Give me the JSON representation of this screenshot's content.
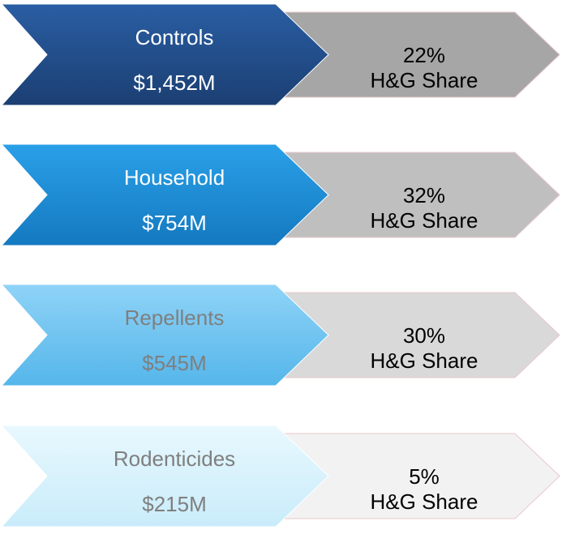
{
  "rows": [
    {
      "category": "Controls",
      "value": "$1,452M",
      "share": "22%",
      "share_label": "H&G Share"
    },
    {
      "category": "Household",
      "value": "$754M",
      "share": "32%",
      "share_label": "H&G Share"
    },
    {
      "category": "Repellents",
      "value": "$545M",
      "share": "30%",
      "share_label": "H&G Share"
    },
    {
      "category": "Rodenticides",
      "value": "$215M",
      "share": "5%",
      "share_label": "H&G Share"
    }
  ]
}
